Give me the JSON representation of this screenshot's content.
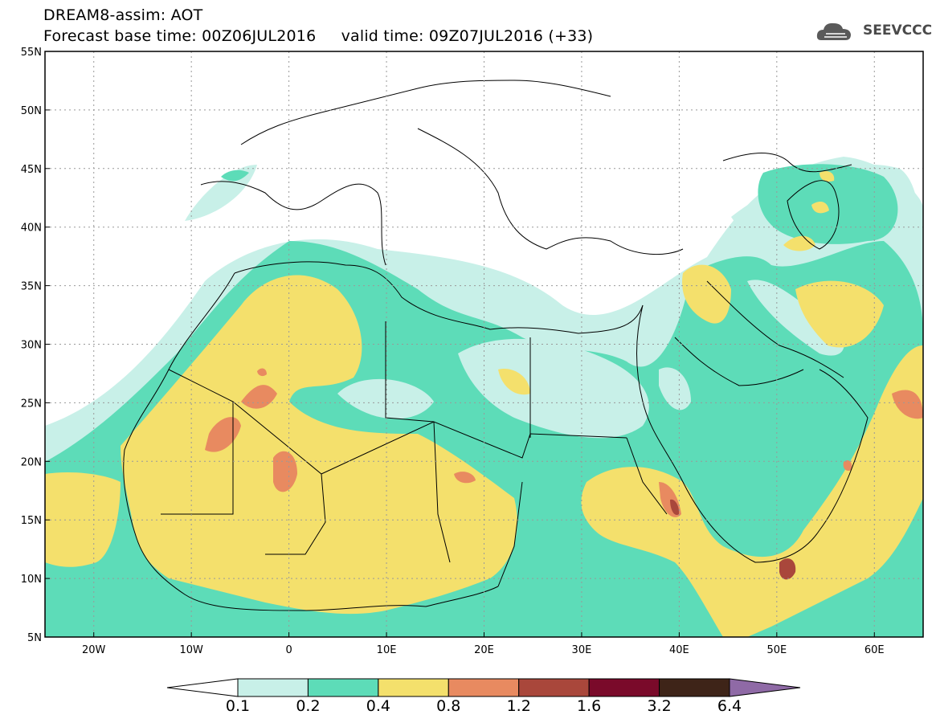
{
  "header": {
    "line1": "DREAM8-assim: AOT",
    "line2_base": "Forecast base time: 00Z06JUL2016",
    "line2_valid": "valid time: 09Z07JUL2016 (+33)"
  },
  "logo": {
    "icon": "cloud-icon",
    "text": "SEEVCCC"
  },
  "map": {
    "lon_range": [
      -25,
      65
    ],
    "lat_range": [
      5,
      55
    ],
    "lat_ticks": [
      {
        "value": 55,
        "label": "55N"
      },
      {
        "value": 50,
        "label": "50N"
      },
      {
        "value": 45,
        "label": "45N"
      },
      {
        "value": 40,
        "label": "40N"
      },
      {
        "value": 35,
        "label": "35N"
      },
      {
        "value": 30,
        "label": "30N"
      },
      {
        "value": 25,
        "label": "25N"
      },
      {
        "value": 20,
        "label": "20N"
      },
      {
        "value": 15,
        "label": "15N"
      },
      {
        "value": 10,
        "label": "10N"
      },
      {
        "value": 5,
        "label": "5N"
      }
    ],
    "lon_ticks": [
      {
        "value": -20,
        "label": "20W"
      },
      {
        "value": -10,
        "label": "10W"
      },
      {
        "value": 0,
        "label": "0"
      },
      {
        "value": 10,
        "label": "10E"
      },
      {
        "value": 20,
        "label": "20E"
      },
      {
        "value": 30,
        "label": "30E"
      },
      {
        "value": 40,
        "label": "40E"
      },
      {
        "value": 50,
        "label": "50E"
      },
      {
        "value": 60,
        "label": "60E"
      }
    ]
  },
  "colorbar": {
    "low_color": "#ffffff",
    "high_color": "#8f6aa6",
    "colors": [
      "#c8f0e8",
      "#5ddcb8",
      "#f4e06c",
      "#e88a60",
      "#a9473b",
      "#7a0a2a",
      "#3e2418"
    ],
    "labels": [
      "0.1",
      "0.2",
      "0.4",
      "0.8",
      "1.2",
      "1.6",
      "3.2",
      "6.4"
    ]
  },
  "colors": {
    "c1": "#c8f0e8",
    "c2": "#5ddcb8",
    "c3": "#f4e06c",
    "c4": "#e88a60",
    "c5": "#a9473b"
  }
}
